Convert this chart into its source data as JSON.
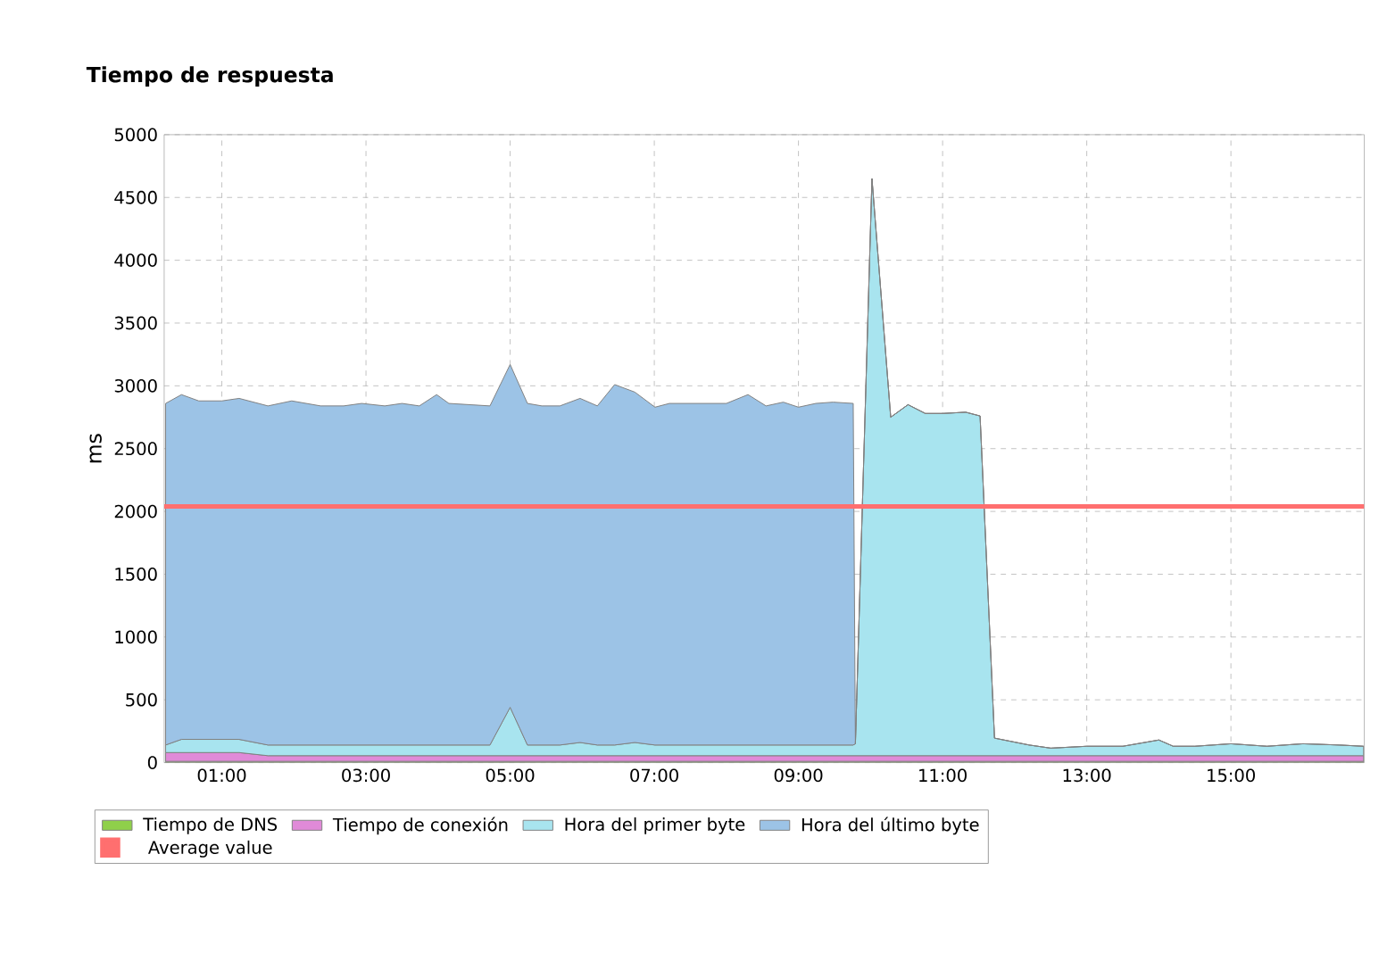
{
  "chart_data": {
    "type": "area",
    "title": "Tiempo de respuesta",
    "ylabel": "ms",
    "stacked": true,
    "grid": true,
    "legend": "bottom",
    "xlim": [
      0.2,
      16.85
    ],
    "ylim": [
      0,
      5000
    ],
    "xticks": [
      {
        "value": 1,
        "label": "01:00"
      },
      {
        "value": 3,
        "label": "03:00"
      },
      {
        "value": 5,
        "label": "05:00"
      },
      {
        "value": 7,
        "label": "07:00"
      },
      {
        "value": 9,
        "label": "09:00"
      },
      {
        "value": 11,
        "label": "11:00"
      },
      {
        "value": 13,
        "label": "13:00"
      },
      {
        "value": 15,
        "label": "15:00"
      }
    ],
    "yticks": [
      0,
      500,
      1000,
      1500,
      2000,
      2500,
      3000,
      3500,
      4000,
      4500,
      5000
    ],
    "x": [
      0.22,
      0.44,
      0.68,
      1.0,
      1.24,
      1.64,
      1.97,
      2.37,
      2.69,
      2.94,
      3.26,
      3.5,
      3.74,
      3.98,
      4.15,
      4.72,
      5.0,
      5.24,
      5.44,
      5.69,
      5.97,
      6.21,
      6.45,
      6.73,
      7.01,
      7.21,
      7.5,
      8.0,
      8.3,
      8.55,
      8.79,
      9.0,
      9.24,
      9.48,
      9.76,
      9.79,
      10.02,
      10.28,
      10.52,
      10.76,
      11.0,
      11.32,
      11.52,
      11.72,
      12.2,
      12.5,
      13.0,
      13.5,
      14.0,
      14.2,
      14.5,
      15.0,
      15.5,
      16.0,
      16.5,
      16.84
    ],
    "series": [
      {
        "name": "Tiempo de DNS",
        "color": "#8fd04a",
        "values": [
          10,
          10,
          10,
          10,
          10,
          10,
          10,
          10,
          10,
          10,
          10,
          10,
          10,
          10,
          10,
          10,
          10,
          10,
          10,
          10,
          10,
          10,
          10,
          10,
          10,
          10,
          10,
          10,
          10,
          10,
          10,
          10,
          10,
          10,
          10,
          10,
          10,
          10,
          10,
          10,
          10,
          10,
          10,
          10,
          10,
          10,
          10,
          10,
          10,
          10,
          10,
          10,
          10,
          10,
          10,
          10
        ]
      },
      {
        "name": "Tiempo de conexión",
        "color": "#e08ad8",
        "values": [
          70,
          70,
          70,
          70,
          70,
          45,
          45,
          45,
          45,
          45,
          45,
          45,
          45,
          45,
          45,
          45,
          45,
          45,
          45,
          45,
          45,
          45,
          45,
          45,
          45,
          45,
          45,
          45,
          45,
          45,
          45,
          45,
          45,
          45,
          45,
          45,
          45,
          45,
          45,
          45,
          45,
          45,
          45,
          45,
          45,
          45,
          45,
          45,
          45,
          45,
          45,
          45,
          45,
          45,
          45,
          45
        ]
      },
      {
        "name": "Hora del primer byte",
        "color": "#a8e4ef",
        "values": [
          60,
          105,
          105,
          105,
          105,
          85,
          85,
          85,
          85,
          85,
          85,
          85,
          85,
          85,
          85,
          85,
          385,
          85,
          85,
          85,
          105,
          85,
          85,
          105,
          85,
          85,
          85,
          85,
          85,
          85,
          85,
          85,
          85,
          85,
          85,
          95,
          4595,
          2695,
          2795,
          2725,
          2725,
          2735,
          2705,
          140,
          85,
          60,
          75,
          75,
          125,
          75,
          75,
          95,
          75,
          95,
          85,
          75
        ]
      },
      {
        "name": "Hora del último byte",
        "color": "#9cc3e6",
        "values": [
          2720,
          2745,
          2695,
          2695,
          2715,
          2700,
          2740,
          2700,
          2700,
          2720,
          2700,
          2720,
          2700,
          2790,
          2720,
          2700,
          2730,
          2720,
          2700,
          2700,
          2740,
          2700,
          2870,
          2790,
          2690,
          2720,
          2720,
          2720,
          2790,
          2700,
          2730,
          2690,
          2720,
          2730,
          2720,
          0,
          0,
          0,
          0,
          0,
          0,
          0,
          0,
          0,
          0,
          0,
          0,
          0,
          0,
          0,
          0,
          0,
          0,
          0,
          0,
          0
        ]
      }
    ],
    "ref_lines": [
      {
        "axis": "y",
        "value": 2040,
        "label": "Average value",
        "color": "#ff6f6f"
      }
    ]
  }
}
